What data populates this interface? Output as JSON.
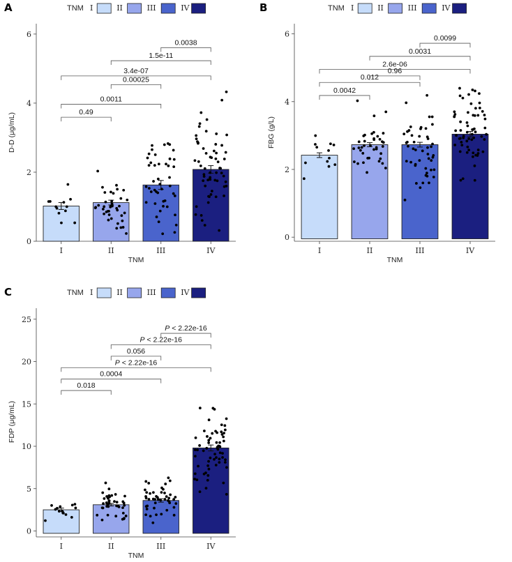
{
  "legend": {
    "title": "TNM",
    "labels": [
      "I",
      "II",
      "III",
      "IV"
    ],
    "colors": [
      "#c6dcfa",
      "#97a6ec",
      "#4a64cc",
      "#1b1f80"
    ]
  },
  "chart_data": [
    {
      "panel": "A",
      "type": "bar",
      "categories": [
        "I",
        "II",
        "III",
        "IV"
      ],
      "values": [
        1.02,
        1.12,
        1.63,
        2.08
      ],
      "errors": [
        0.1,
        0.07,
        0.13,
        0.11
      ],
      "xlabel": "TNM",
      "ylabel": "D-D (μg/mL)",
      "ylim": [
        0,
        6.3
      ],
      "yticks": [
        0,
        2,
        4,
        6
      ],
      "points_n": [
        12,
        40,
        45,
        62
      ],
      "comparisons": [
        {
          "a": 0,
          "b": 1,
          "label": "0.49",
          "italic_p": false
        },
        {
          "a": 0,
          "b": 2,
          "label": "0.0011",
          "italic_p": false
        },
        {
          "a": 0,
          "b": 3,
          "label": "3.4e-07",
          "italic_p": false
        },
        {
          "a": 1,
          "b": 2,
          "label": "0.00025",
          "italic_p": false
        },
        {
          "a": 1,
          "b": 3,
          "label": "1.5e-11",
          "italic_p": false
        },
        {
          "a": 2,
          "b": 3,
          "label": "0.0038",
          "italic_p": false
        }
      ]
    },
    {
      "panel": "B",
      "type": "bar",
      "categories": [
        "I",
        "II",
        "III",
        "IV"
      ],
      "values": [
        2.42,
        2.73,
        2.73,
        3.04
      ],
      "errors": [
        0.07,
        0.06,
        0.07,
        0.08
      ],
      "xlabel": "TNM",
      "ylabel": "FBG (g/L)",
      "ylim": [
        -0.12,
        6.3
      ],
      "yticks": [
        0,
        2,
        4,
        6
      ],
      "points_n": [
        12,
        38,
        48,
        64
      ],
      "comparisons": [
        {
          "a": 0,
          "b": 1,
          "label": "0.0042",
          "italic_p": false
        },
        {
          "a": 0,
          "b": 2,
          "label": "0.012",
          "italic_p": false
        },
        {
          "a": 0,
          "b": 3,
          "label": "2.6e-06",
          "italic_p": false
        },
        {
          "a": 1,
          "b": 2,
          "label": "0.96",
          "italic_p": false
        },
        {
          "a": 1,
          "b": 3,
          "label": "0.0031",
          "italic_p": false
        },
        {
          "a": 2,
          "b": 3,
          "label": "0.0099",
          "italic_p": false
        }
      ]
    },
    {
      "panel": "C",
      "type": "bar",
      "categories": [
        "I",
        "II",
        "III",
        "IV"
      ],
      "values": [
        2.5,
        3.1,
        3.6,
        9.8
      ],
      "errors": [
        0.2,
        0.15,
        0.2,
        0.35
      ],
      "xlabel": "TNM",
      "ylabel": "FDP (μg/mL)",
      "ylim": [
        -0.7,
        26.3
      ],
      "yticks": [
        0,
        5,
        10,
        15,
        20,
        25
      ],
      "points_n": [
        14,
        40,
        45,
        64
      ],
      "comparisons": [
        {
          "a": 0,
          "b": 1,
          "label": "0.018",
          "italic_p": false
        },
        {
          "a": 0,
          "b": 2,
          "label": "0.0004",
          "italic_p": false
        },
        {
          "a": 0,
          "b": 3,
          "label": "< 2.22e-16",
          "italic_p": true
        },
        {
          "a": 1,
          "b": 2,
          "label": "0.056",
          "italic_p": false
        },
        {
          "a": 1,
          "b": 3,
          "label": "< 2.22e-16",
          "italic_p": true
        },
        {
          "a": 2,
          "b": 3,
          "label": "< 2.22e-16",
          "italic_p": true
        }
      ]
    }
  ]
}
